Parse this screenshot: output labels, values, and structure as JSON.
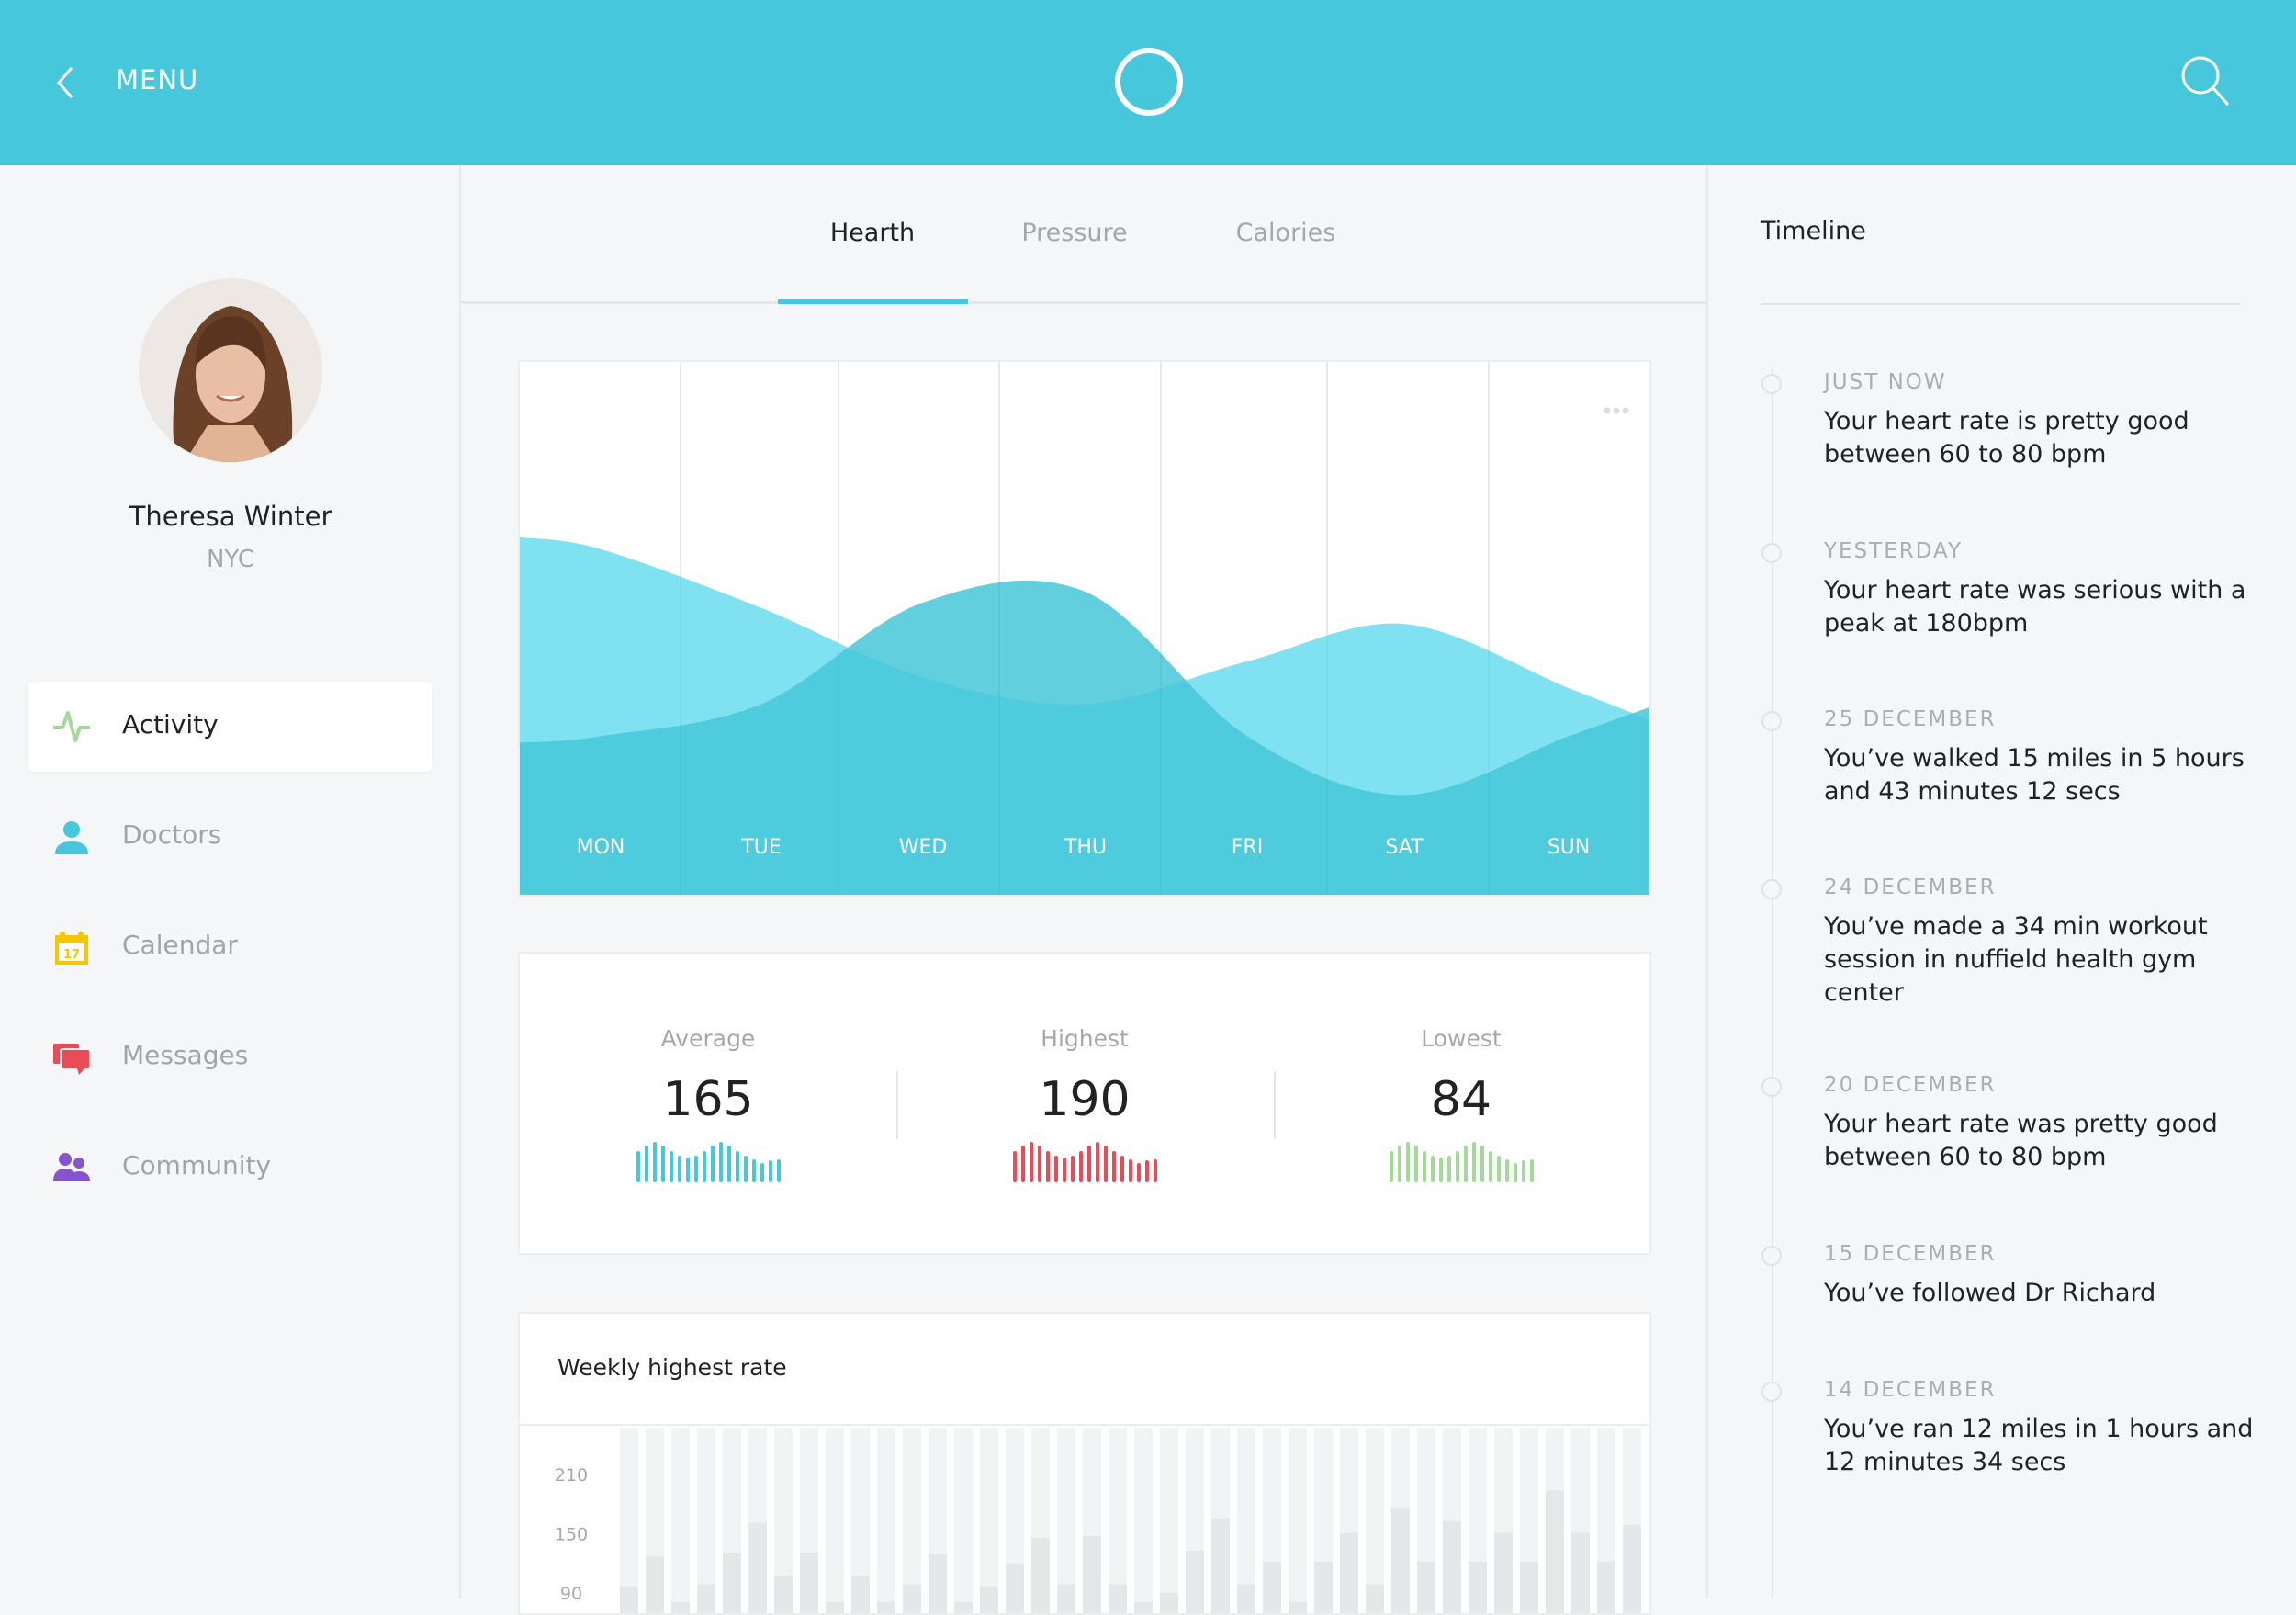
{
  "header": {
    "menu_label": "MENU",
    "icons": [
      "chevron-left-icon",
      "circle-logo-icon",
      "search-icon"
    ],
    "color": "#46C7DC"
  },
  "profile": {
    "name": "Theresa Winter",
    "location": "NYC"
  },
  "sidebar": {
    "items": [
      {
        "label": "Activity",
        "icon": "pulse-icon",
        "color": "#A5D99A",
        "active": true
      },
      {
        "label": "Doctors",
        "icon": "user-icon",
        "color": "#46C7DC"
      },
      {
        "label": "Calendar",
        "icon": "calendar-icon",
        "color": "#F7C600",
        "icon_text": "17"
      },
      {
        "label": "Messages",
        "icon": "chat-icon",
        "color": "#E94B57"
      },
      {
        "label": "Community",
        "icon": "users-icon",
        "color": "#8655CC"
      }
    ]
  },
  "tabs": [
    {
      "label": "Hearth",
      "active": true
    },
    {
      "label": "Pressure"
    },
    {
      "label": "Calories"
    }
  ],
  "stats": [
    {
      "label": "Average",
      "value": "165",
      "color": "#46C7DC",
      "spark": [
        100,
        117,
        130,
        117,
        100,
        87,
        80,
        87,
        100,
        117,
        130,
        117,
        100,
        87,
        75,
        63,
        71,
        75
      ]
    },
    {
      "label": "Highest",
      "value": "190",
      "color": "#E94B57",
      "spark": [
        100,
        117,
        130,
        117,
        100,
        87,
        80,
        87,
        100,
        117,
        130,
        117,
        100,
        87,
        75,
        63,
        71,
        75
      ]
    },
    {
      "label": "Lowest",
      "value": "84",
      "color": "#A5D99A",
      "spark": [
        100,
        117,
        130,
        117,
        100,
        87,
        80,
        87,
        100,
        117,
        130,
        117,
        100,
        87,
        75,
        63,
        71,
        75
      ]
    }
  ],
  "timeline": {
    "title": "Timeline",
    "items": [
      {
        "date": "JUST NOW",
        "text": "Your heart rate is pretty good between 60 to 80 bpm"
      },
      {
        "date": "YESTERDAY",
        "text": "Your heart rate was serious with a peak at 180bpm"
      },
      {
        "date": "25 DECEMBER",
        "text": "You’ve walked 15 miles in 5 hours and 43 minutes 12 secs"
      },
      {
        "date": "24 DECEMBER",
        "text": "You’ve made a 34 min workout session in nuffield health gym center"
      },
      {
        "date": "20 DECEMBER",
        "text": "Your heart rate was pretty good between 60 to 80 bpm"
      },
      {
        "date": "15 DECEMBER",
        "text": "You’ve followed Dr Richard"
      },
      {
        "date": "14 DECEMBER",
        "text": "You’ve ran 12 miles in 1 hours and 12 minutes 34 secs"
      }
    ]
  },
  "chart_data": [
    {
      "type": "area",
      "categories": [
        "MON",
        "TUE",
        "WED",
        "THU",
        "FRI",
        "SAT",
        "SUN"
      ],
      "series": [
        {
          "values": [
            65,
            54,
            41,
            36,
            44,
            51,
            39
          ],
          "color": "#80E2F0"
        },
        {
          "values": [
            30,
            36,
            55,
            57,
            30,
            19,
            30
          ],
          "color": "#44C6D9"
        }
      ],
      "grid": "vertical",
      "menu_icon": "more-dots-icon"
    },
    {
      "type": "bar",
      "title": "Weekly highest rate",
      "yticks": [
        210,
        150,
        90
      ],
      "values": [
        96,
        126,
        80,
        98,
        130,
        160,
        106,
        130,
        80,
        106,
        80,
        98,
        128,
        80,
        96,
        119,
        145,
        98,
        147,
        98,
        80,
        89,
        132,
        165,
        98,
        121,
        80,
        121,
        150,
        98,
        176,
        121,
        162,
        121,
        150,
        121,
        193,
        150,
        121,
        158
      ],
      "bar_color": "#E6E7E8",
      "track_color": "#F2F3F5"
    }
  ]
}
